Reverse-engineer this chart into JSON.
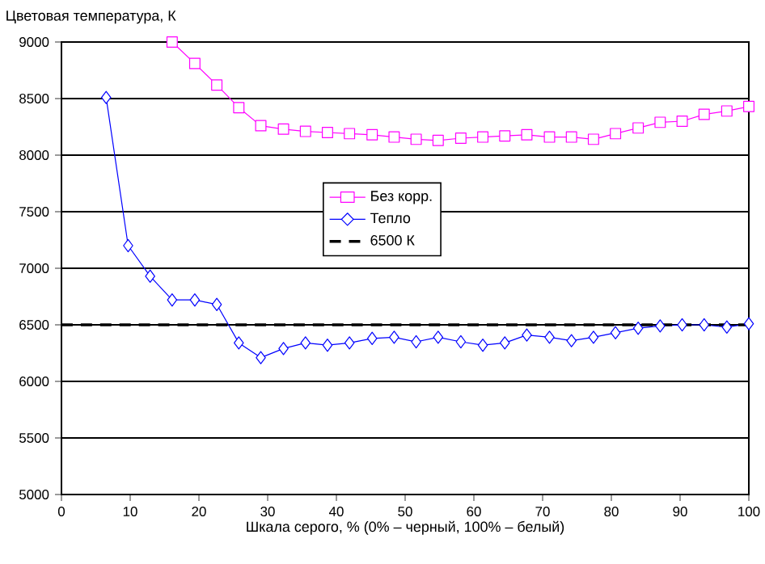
{
  "chart_data": {
    "type": "line",
    "ylabel": "Цветовая температура, К",
    "xlabel": "Шкала серого, % (0% – черный, 100% – белый)",
    "x": [
      6.5,
      9.7,
      12.9,
      16.1,
      19.4,
      22.6,
      25.8,
      29.0,
      32.3,
      35.5,
      38.7,
      41.9,
      45.2,
      48.4,
      51.6,
      54.8,
      58.1,
      61.3,
      64.5,
      67.7,
      71.0,
      74.2,
      77.4,
      80.6,
      83.9,
      87.1,
      90.3,
      93.5,
      96.8,
      100
    ],
    "series": [
      {
        "name": "Без корр.",
        "color": "#ff00ff",
        "marker": "square",
        "values": [
          null,
          null,
          null,
          9000,
          8810,
          8620,
          8420,
          8260,
          8230,
          8210,
          8200,
          8190,
          8180,
          8160,
          8140,
          8130,
          8150,
          8160,
          8170,
          8180,
          8160,
          8160,
          8140,
          8190,
          8240,
          8290,
          8300,
          8360,
          8390,
          8430
        ]
      },
      {
        "name": "Тепло",
        "color": "#0000ff",
        "marker": "diamond",
        "values": [
          8510,
          7200,
          6930,
          6720,
          6720,
          6680,
          6340,
          6210,
          6290,
          6340,
          6320,
          6340,
          6380,
          6390,
          6350,
          6390,
          6350,
          6320,
          6340,
          6410,
          6390,
          6360,
          6390,
          6430,
          6470,
          6490,
          6500,
          6500,
          6480,
          6510
        ]
      }
    ],
    "ref_lines": [
      {
        "axis": "y",
        "value": 6500,
        "label": "6500 К",
        "color": "#000000",
        "line_style": "dashed"
      }
    ],
    "xlim": [
      0,
      100
    ],
    "ylim": [
      5000,
      9000
    ],
    "xticks": [
      0,
      10,
      20,
      30,
      40,
      50,
      60,
      70,
      80,
      90,
      100
    ],
    "yticks": [
      5000,
      5500,
      6000,
      6500,
      7000,
      7500,
      8000,
      8500,
      9000
    ],
    "grid": "y",
    "legend": "right",
    "line_style": "solid"
  }
}
